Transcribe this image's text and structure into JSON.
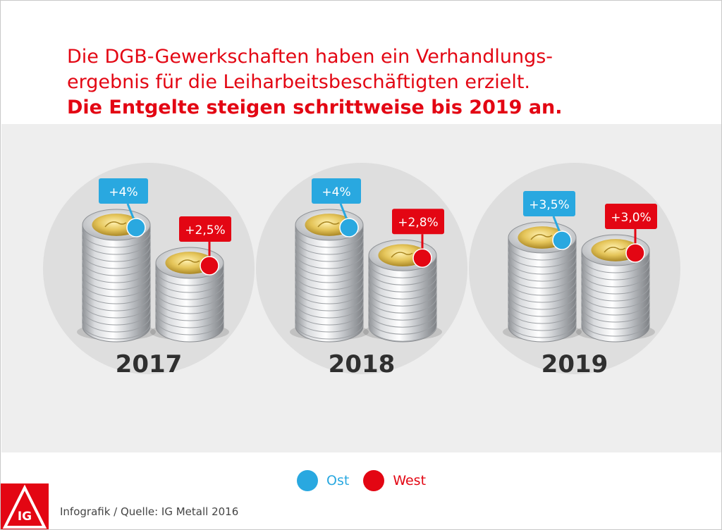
{
  "headline": {
    "line1": "Die DGB-Gewerkschaften haben ein Verhandlungs-",
    "line2": "ergebnis für die Leiharbeitsbeschäftigten erzielt.",
    "line3": "Die Entgelte steigen schrittweise bis 2019 an."
  },
  "colors": {
    "accent": "#e30613",
    "ost": "#29a8e0",
    "west": "#e30613",
    "year_text": "#2f2f2f",
    "band": "#eeeeee",
    "circle": "#dedede"
  },
  "chart_data": {
    "type": "bar",
    "categories": [
      "2017",
      "2018",
      "2019"
    ],
    "series": [
      {
        "name": "Ost",
        "values": [
          4.0,
          4.0,
          3.5
        ],
        "labels": [
          "+4%",
          "+4%",
          "+3,5%"
        ]
      },
      {
        "name": "West",
        "values": [
          2.5,
          2.8,
          3.0
        ],
        "labels": [
          "+2,5%",
          "+2,8%",
          "+3,0%"
        ]
      }
    ]
  },
  "legend": {
    "ost_label": "Ost",
    "west_label": "West"
  },
  "logo": {
    "text": "IG",
    "icon": "ig-metall-logo-icon"
  },
  "source": "Infografik / Quelle: IG Metall 2016"
}
